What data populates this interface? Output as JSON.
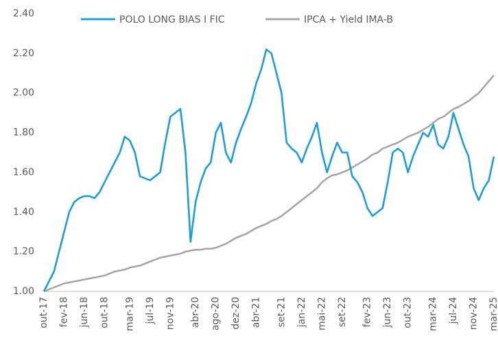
{
  "chart_data": {
    "type": "line",
    "categories": [
      "out-17",
      null,
      null,
      null,
      "fev-18",
      null,
      null,
      null,
      "jun-18",
      null,
      null,
      null,
      "out-18",
      null,
      null,
      null,
      null,
      "mar-19",
      null,
      null,
      null,
      "jul-19",
      null,
      null,
      null,
      "nov-19",
      null,
      null,
      null,
      null,
      "abr-20",
      null,
      null,
      null,
      "ago-20",
      null,
      null,
      null,
      "dez-20",
      null,
      null,
      null,
      "abr-21",
      null,
      null,
      null,
      null,
      "set-21",
      null,
      null,
      null,
      "jan-22",
      null,
      null,
      null,
      "mai-22",
      null,
      null,
      null,
      "set-22",
      null,
      null,
      null,
      null,
      "fev-23",
      null,
      null,
      null,
      "jun-23",
      null,
      null,
      null,
      "out-23",
      null,
      null,
      null,
      null,
      "mar-24",
      null,
      null,
      null,
      "jul-24",
      null,
      null,
      null,
      "nov-24",
      null,
      null,
      null,
      "mar-25"
    ],
    "series": [
      {
        "name": "POLO LONG BIAS I FIC",
        "color": "#1a9ed9",
        "values": [
          1.0,
          1.05,
          1.1,
          1.2,
          1.3,
          1.4,
          1.45,
          1.47,
          1.48,
          1.48,
          1.47,
          1.5,
          1.55,
          1.6,
          1.65,
          1.7,
          1.78,
          1.76,
          1.7,
          1.58,
          1.57,
          1.56,
          1.58,
          1.6,
          1.75,
          1.88,
          1.9,
          1.92,
          1.7,
          1.25,
          1.45,
          1.55,
          1.62,
          1.65,
          1.8,
          1.85,
          1.7,
          1.65,
          1.75,
          1.82,
          1.88,
          1.95,
          2.05,
          2.12,
          2.22,
          2.2,
          2.1,
          2.0,
          1.75,
          1.72,
          1.7,
          1.65,
          1.72,
          1.78,
          1.85,
          1.7,
          1.6,
          1.68,
          1.75,
          1.7,
          1.7,
          1.58,
          1.55,
          1.5,
          1.42,
          1.38,
          1.4,
          1.42,
          1.55,
          1.7,
          1.72,
          1.7,
          1.6,
          1.68,
          1.74,
          1.8,
          1.78,
          1.84,
          1.74,
          1.72,
          1.78,
          1.9,
          1.82,
          1.74,
          1.68,
          1.52,
          1.46,
          1.52,
          1.56,
          1.68
        ]
      },
      {
        "name": "IPCA + Yield IMA-B",
        "color": "#a6a6a6",
        "values": [
          1.0,
          1.01,
          1.02,
          1.03,
          1.04,
          1.045,
          1.05,
          1.055,
          1.06,
          1.065,
          1.07,
          1.075,
          1.08,
          1.09,
          1.1,
          1.105,
          1.11,
          1.12,
          1.125,
          1.13,
          1.14,
          1.15,
          1.16,
          1.17,
          1.175,
          1.18,
          1.185,
          1.19,
          1.2,
          1.205,
          1.21,
          1.21,
          1.215,
          1.215,
          1.22,
          1.23,
          1.24,
          1.255,
          1.27,
          1.28,
          1.29,
          1.305,
          1.32,
          1.33,
          1.34,
          1.355,
          1.365,
          1.38,
          1.4,
          1.42,
          1.44,
          1.46,
          1.48,
          1.5,
          1.52,
          1.55,
          1.57,
          1.585,
          1.59,
          1.6,
          1.61,
          1.625,
          1.64,
          1.655,
          1.67,
          1.69,
          1.7,
          1.72,
          1.73,
          1.74,
          1.75,
          1.765,
          1.78,
          1.79,
          1.8,
          1.815,
          1.83,
          1.85,
          1.87,
          1.88,
          1.9,
          1.92,
          1.93,
          1.945,
          1.96,
          1.98,
          2.0,
          2.03,
          2.06,
          2.09
        ]
      }
    ],
    "ylim": [
      1.0,
      2.4
    ],
    "yticks": [
      {
        "value": 1.0,
        "label": "1.00"
      },
      {
        "value": 1.2,
        "label": "1.20"
      },
      {
        "value": 1.4,
        "label": "1.40"
      },
      {
        "value": 1.6,
        "label": "1.60"
      },
      {
        "value": 1.8,
        "label": "1.80"
      },
      {
        "value": 2.0,
        "label": "2.00"
      },
      {
        "value": 2.2,
        "label": "2.20"
      },
      {
        "value": 2.4,
        "label": "2.40"
      }
    ],
    "grid": false,
    "legend": "top"
  }
}
